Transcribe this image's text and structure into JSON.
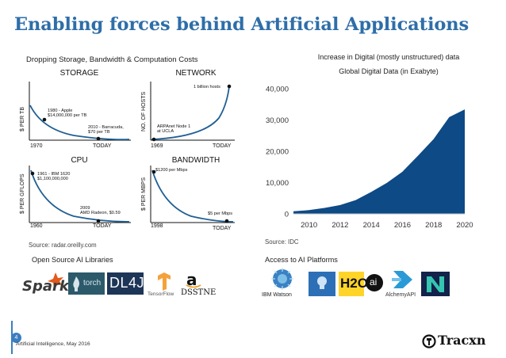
{
  "title": "Enabling forces behind Artificial Applications",
  "left_section": {
    "heading": "Dropping Storage, Bandwidth & Computation Costs",
    "source": "Source: radar.oreilly.com",
    "panels": [
      {
        "title": "STORAGE",
        "y_axis": "$ PER TB",
        "x_start": "1970",
        "x_end": "TODAY",
        "annotations": [
          "1980 - Apple",
          "$14,000,000 per TB",
          "2010 - Barracuda,",
          "$70 per TB"
        ]
      },
      {
        "title": "NETWORK",
        "y_axis": "NO. OF HOSTS",
        "x_start": "1969",
        "x_end": "TODAY",
        "annotations": [
          "1 billion hosts",
          "ARPAnet Node 1",
          "at UCLA"
        ]
      },
      {
        "title": "CPU",
        "y_axis": "$ PER GFLOPS",
        "x_start": "1960",
        "x_end": "TODAY",
        "annotations": [
          "1961 - IBM 1620",
          "$1,100,000,000",
          "2009",
          "AMD Radeon, $0.59"
        ]
      },
      {
        "title": "BANDWIDTH",
        "y_axis": "$ PER MBPS",
        "x_start": "1998",
        "x_end": "TODAY",
        "annotations": [
          "$1200 per Mbps",
          "$5 per Mbps"
        ]
      }
    ]
  },
  "right_section": {
    "source": "Source: IDC"
  },
  "chart_data": {
    "type": "area",
    "title": "Increase in Digital (mostly unstructured) data",
    "subtitle": "Global Digital Data (in Exabyte)",
    "x": [
      2009,
      2010,
      2011,
      2012,
      2013,
      2014,
      2015,
      2016,
      2017,
      2018,
      2019,
      2020
    ],
    "values": [
      800,
      1200,
      1900,
      2800,
      4400,
      7000,
      9900,
      13500,
      18600,
      23900,
      30900,
      33400
    ],
    "x_ticks": [
      "2010",
      "2012",
      "2014",
      "2016",
      "2018",
      "2020"
    ],
    "y_ticks": [
      "0",
      "10,000",
      "20,000",
      "30,000",
      "40,000"
    ],
    "ylim": [
      0,
      40000
    ],
    "xlim": [
      2009,
      2020
    ],
    "color": "#0d4a86",
    "grid": false
  },
  "libraries": {
    "heading": "Open Source AI Libraries",
    "logos": {
      "spark": "Spark",
      "torch": "torch",
      "dl4j": "DL4J",
      "tensorflow": "TensorFlow",
      "dsstne": "DSSTNE"
    }
  },
  "platforms": {
    "heading": "Access to AI Platforms",
    "logos": {
      "watson": "IBM Watson",
      "h2o": "H2O",
      "h2o_suffix": "ai",
      "alchemy": "AlchemyAPI"
    }
  },
  "footer": {
    "page": "4",
    "text": "Artificial Intelligence, May 2016",
    "brand": "Tracxn"
  },
  "colors": {
    "title": "#2e6ea8",
    "chart_fill": "#0d4a86",
    "footer_accent": "#3c7ec0"
  }
}
